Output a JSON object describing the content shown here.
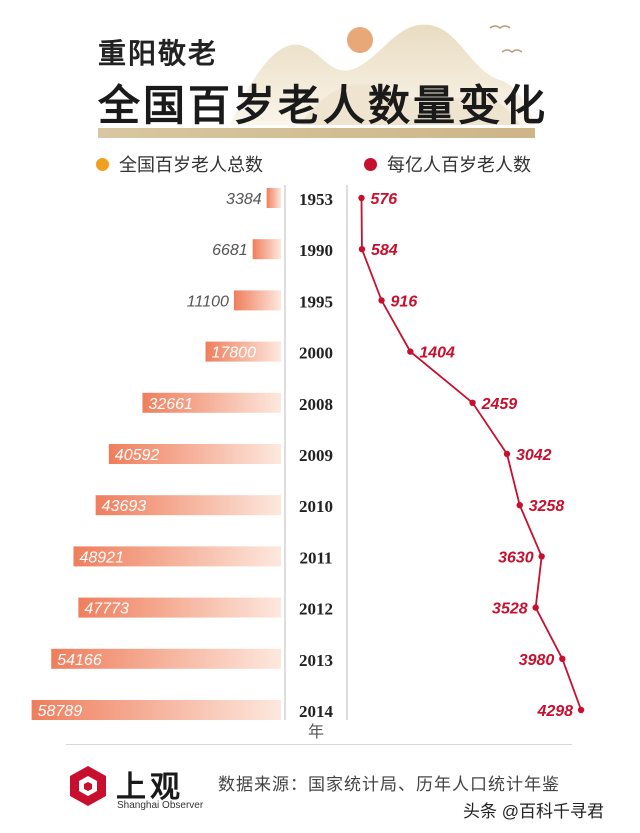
{
  "header": {
    "subtitle": "重阳敬老",
    "title": "全国百岁老人数量变化"
  },
  "legend": {
    "left": "全国百岁老人总数",
    "right": "每亿人百岁老人数"
  },
  "colors": {
    "bar": "#ef7e5c",
    "line": "#c8102e",
    "legend_left_dot": "#f0a020",
    "legend_right_dot": "#c8102e",
    "axis": "#bbbbbb"
  },
  "chart_data": {
    "type": "bar",
    "title": "全国百岁老人数量变化",
    "xlabel": "年",
    "categories": [
      "1953",
      "1990",
      "1995",
      "2000",
      "2008",
      "2009",
      "2010",
      "2011",
      "2012",
      "2013",
      "2014"
    ],
    "series": [
      {
        "name": "全国百岁老人总数",
        "type": "bar",
        "values": [
          3384,
          6681,
          11100,
          17800,
          32661,
          40592,
          43693,
          48921,
          47773,
          54166,
          58789
        ]
      },
      {
        "name": "每亿人百岁老人数",
        "type": "line",
        "values": [
          576,
          584,
          916,
          1404,
          2459,
          3042,
          3258,
          3630,
          3528,
          3980,
          4298
        ]
      }
    ],
    "xlim_bar": [
      0,
      62000
    ],
    "xlim_line": [
      500,
      4500
    ]
  },
  "footer": {
    "logo_text": "上观",
    "logo_sub": "Shanghai Observer",
    "source": "数据来源：国家统计局、历年人口统计年鉴",
    "watermark": "头条 @百科千寻君"
  }
}
